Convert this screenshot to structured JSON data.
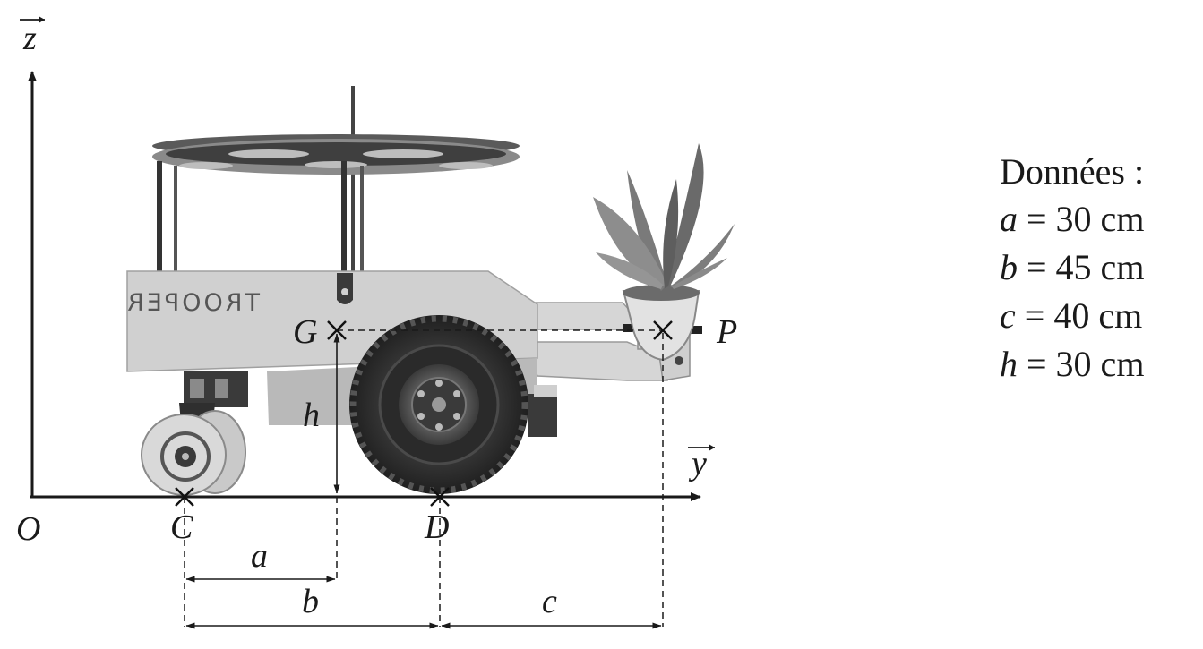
{
  "axes": {
    "origin": "O",
    "z_label": "z",
    "y_label": "y"
  },
  "points": {
    "C": "C",
    "D": "D",
    "G": "G",
    "P": "P"
  },
  "dimensions": {
    "a": "a",
    "b": "b",
    "c": "c",
    "h": "h"
  },
  "robot_label": "TROOPER",
  "data_panel": {
    "title": "Données :",
    "lines": [
      {
        "symbol": "a",
        "text": " = 30 cm"
      },
      {
        "symbol": "b",
        "text": " = 45 cm"
      },
      {
        "symbol": "c",
        "text": " = 40 cm"
      },
      {
        "symbol": "h",
        "text": " = 30 cm"
      }
    ]
  },
  "colors": {
    "ink": "#1a1a1a",
    "body": "#d2d2d2",
    "tire": "#2e2e2e",
    "plant": "#6f6f6f"
  }
}
